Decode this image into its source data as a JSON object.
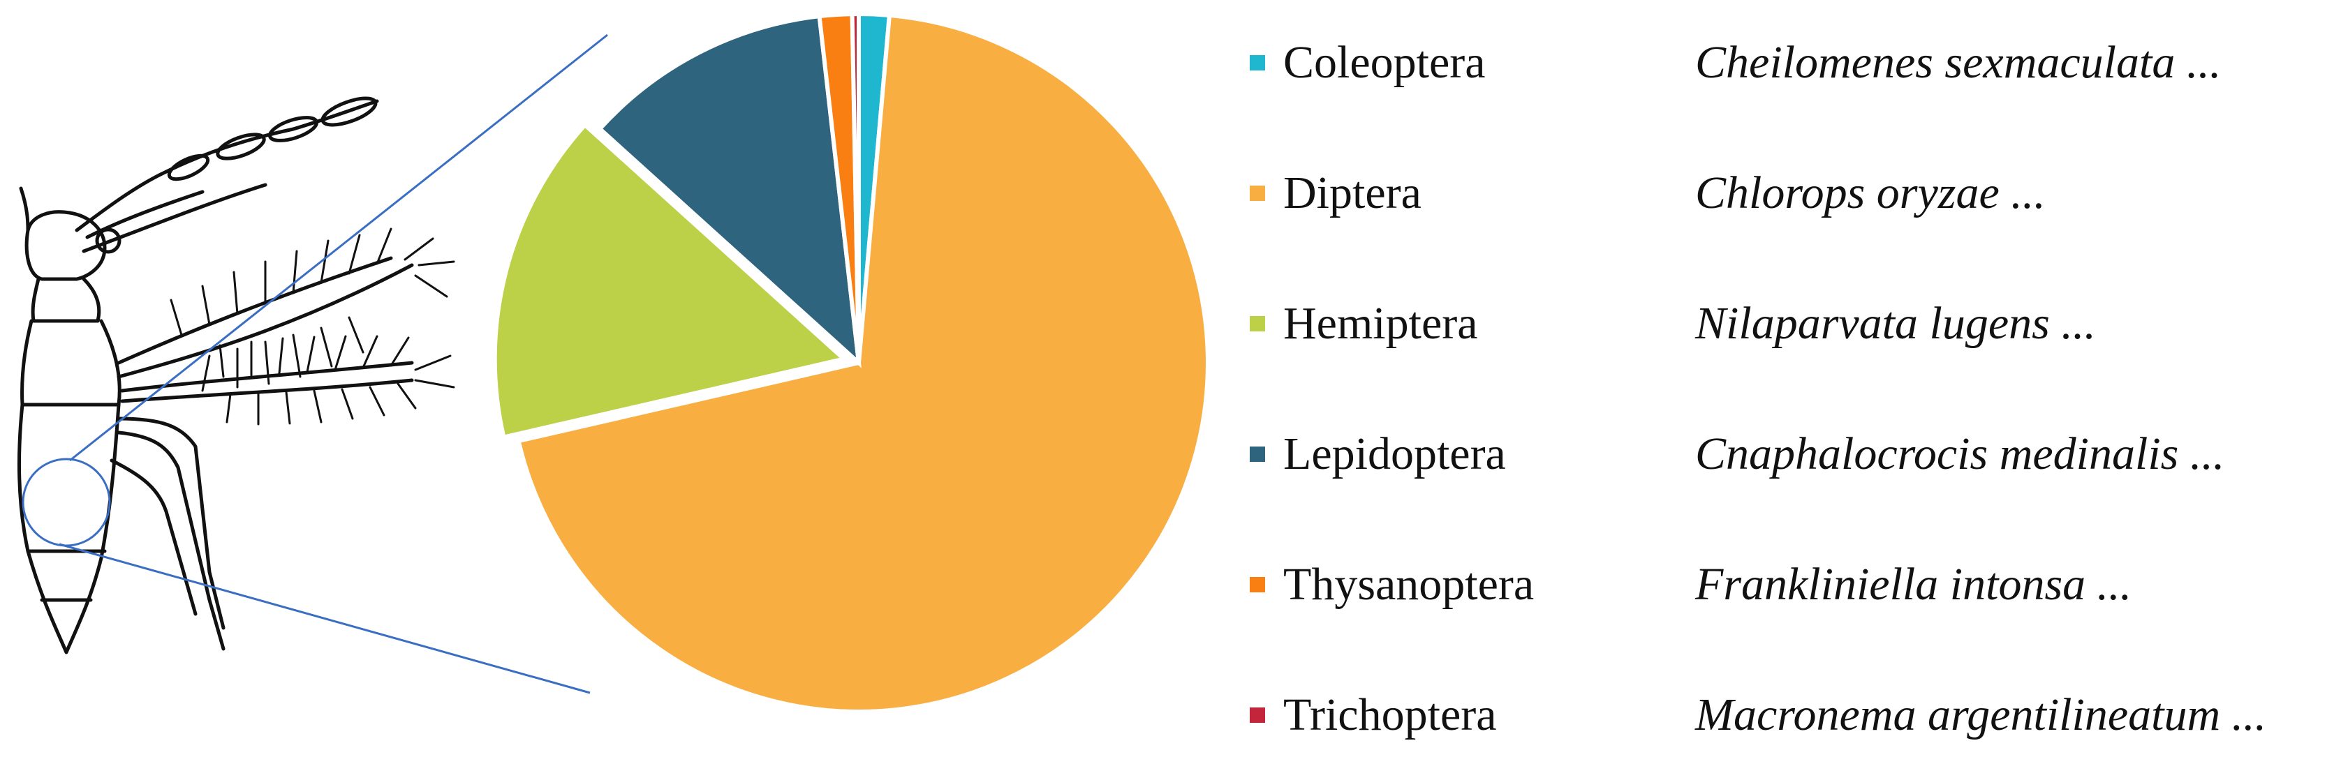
{
  "chart_data": {
    "type": "pie",
    "title": "",
    "slices": [
      {
        "label": "Coleoptera",
        "species": "Cheilomenes sexmaculata ...",
        "value": 1.4,
        "color": "#1fb7d0"
      },
      {
        "label": "Diptera",
        "species": "Chlorops oryzae ...",
        "value": 70.0,
        "color": "#f9ae42"
      },
      {
        "label": "Hemiptera",
        "species": "Nilaparvata lugens ...",
        "value": 15.3,
        "color": "#bcd048"
      },
      {
        "label": "Lepidoptera",
        "species": "Cnaphalocrocis medinalis ...",
        "value": 11.5,
        "color": "#2f647f"
      },
      {
        "label": "Thysanoptera",
        "species": "Frankliniella intonsa ...",
        "value": 1.5,
        "color": "#f97f12"
      },
      {
        "label": "Trichoptera",
        "species": "Macronema argentilineatum ...",
        "value": 0.3,
        "color": "#c3253a"
      }
    ],
    "exploded_slice": "Hemiptera",
    "legend_position": "right"
  }
}
